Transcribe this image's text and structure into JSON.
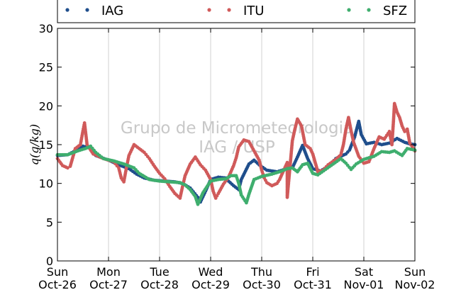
{
  "chart_data": {
    "type": "scatter",
    "title": "",
    "xlabel": "",
    "ylabel": "q(g/kg)",
    "ylim": [
      0,
      30
    ],
    "xlim": [
      0,
      7
    ],
    "yticks": [
      0,
      5,
      10,
      15,
      20,
      25,
      30
    ],
    "xticks": [
      {
        "day": "Sun",
        "date": "Oct-26"
      },
      {
        "day": "Mon",
        "date": "Oct-27"
      },
      {
        "day": "Tue",
        "date": "Oct-28"
      },
      {
        "day": "Wed",
        "date": "Oct-29"
      },
      {
        "day": "Thu",
        "date": "Oct-30"
      },
      {
        "day": "Fri",
        "date": "Oct-31"
      },
      {
        "day": "Sat",
        "date": "Nov-01"
      },
      {
        "day": "Sun",
        "date": "Nov-02"
      }
    ],
    "x_units": "days since Sun Oct-26 00:00",
    "grid": "vertical",
    "legend_position": "top",
    "watermark": [
      "Grupo de Micrometeorologia",
      "IAG / USP"
    ],
    "series": [
      {
        "name": "IAG",
        "color": "#1f4e8c",
        "points": [
          [
            0,
            13.6
          ],
          [
            0.2,
            13.7
          ],
          [
            0.35,
            14.2
          ],
          [
            0.5,
            14.8
          ],
          [
            0.62,
            14.6
          ],
          [
            0.75,
            13.6
          ],
          [
            1.0,
            13.0
          ],
          [
            1.2,
            12.4
          ],
          [
            1.4,
            11.9
          ],
          [
            1.55,
            11.2
          ],
          [
            1.7,
            10.7
          ],
          [
            1.9,
            10.4
          ],
          [
            2.1,
            10.3
          ],
          [
            2.3,
            10.2
          ],
          [
            2.45,
            10.0
          ],
          [
            2.6,
            9.4
          ],
          [
            2.75,
            8.2
          ],
          [
            2.8,
            7.6
          ],
          [
            2.9,
            9.0
          ],
          [
            3.0,
            10.5
          ],
          [
            3.15,
            10.8
          ],
          [
            3.3,
            10.7
          ],
          [
            3.35,
            10.3
          ],
          [
            3.45,
            9.7
          ],
          [
            3.55,
            9.2
          ],
          [
            3.6,
            10.5
          ],
          [
            3.75,
            12.5
          ],
          [
            3.85,
            13.0
          ],
          [
            3.95,
            12.4
          ],
          [
            4.1,
            11.7
          ],
          [
            4.3,
            11.5
          ],
          [
            4.45,
            11.8
          ],
          [
            4.6,
            12.0
          ],
          [
            4.7,
            13.4
          ],
          [
            4.8,
            14.9
          ],
          [
            4.9,
            13.2
          ],
          [
            5.0,
            11.9
          ],
          [
            5.15,
            11.6
          ],
          [
            5.3,
            12.2
          ],
          [
            5.45,
            13.2
          ],
          [
            5.55,
            13.5
          ],
          [
            5.65,
            13.8
          ],
          [
            5.72,
            14.3
          ],
          [
            5.82,
            16.0
          ],
          [
            5.9,
            18.0
          ],
          [
            5.95,
            16.3
          ],
          [
            6.05,
            15.1
          ],
          [
            6.2,
            15.3
          ],
          [
            6.35,
            15.0
          ],
          [
            6.5,
            15.2
          ],
          [
            6.65,
            15.8
          ],
          [
            6.8,
            15.3
          ],
          [
            6.9,
            15.1
          ],
          [
            7.0,
            15.0
          ]
        ]
      },
      {
        "name": "ITU",
        "color": "#d05a5a",
        "points": [
          [
            0,
            13.2
          ],
          [
            0.1,
            12.3
          ],
          [
            0.2,
            12.0
          ],
          [
            0.25,
            12.2
          ],
          [
            0.35,
            14.5
          ],
          [
            0.45,
            15.0
          ],
          [
            0.5,
            16.8
          ],
          [
            0.53,
            17.8
          ],
          [
            0.58,
            15.0
          ],
          [
            0.7,
            13.8
          ],
          [
            0.9,
            13.2
          ],
          [
            1.1,
            12.8
          ],
          [
            1.2,
            12.0
          ],
          [
            1.25,
            10.7
          ],
          [
            1.3,
            10.2
          ],
          [
            1.35,
            12.0
          ],
          [
            1.4,
            13.6
          ],
          [
            1.5,
            15.0
          ],
          [
            1.6,
            14.5
          ],
          [
            1.7,
            14.0
          ],
          [
            1.8,
            13.2
          ],
          [
            1.9,
            12.2
          ],
          [
            2.0,
            11.3
          ],
          [
            2.1,
            10.6
          ],
          [
            2.2,
            9.6
          ],
          [
            2.3,
            8.7
          ],
          [
            2.4,
            8.1
          ],
          [
            2.45,
            9.6
          ],
          [
            2.5,
            11.0
          ],
          [
            2.6,
            12.5
          ],
          [
            2.7,
            13.4
          ],
          [
            2.8,
            12.4
          ],
          [
            2.9,
            11.7
          ],
          [
            3.0,
            10.5
          ],
          [
            3.05,
            9.0
          ],
          [
            3.1,
            8.1
          ],
          [
            3.15,
            8.7
          ],
          [
            3.25,
            9.9
          ],
          [
            3.35,
            10.8
          ],
          [
            3.45,
            12.3
          ],
          [
            3.5,
            13.3
          ],
          [
            3.55,
            14.7
          ],
          [
            3.65,
            15.6
          ],
          [
            3.75,
            15.4
          ],
          [
            3.85,
            14.2
          ],
          [
            3.95,
            13.0
          ],
          [
            4.0,
            11.7
          ],
          [
            4.05,
            10.7
          ],
          [
            4.1,
            10.1
          ],
          [
            4.2,
            9.7
          ],
          [
            4.3,
            10.0
          ],
          [
            4.35,
            10.5
          ],
          [
            4.5,
            12.7
          ],
          [
            4.6,
            15.5
          ],
          [
            4.65,
            17.0
          ],
          [
            4.7,
            18.3
          ],
          [
            4.78,
            17.4
          ],
          [
            4.85,
            15.0
          ],
          [
            4.95,
            14.5
          ],
          [
            5.0,
            13.8
          ],
          [
            5.1,
            11.5
          ],
          [
            5.2,
            11.7
          ],
          [
            5.3,
            12.4
          ],
          [
            5.45,
            13.1
          ],
          [
            5.55,
            13.7
          ],
          [
            5.6,
            15.0
          ],
          [
            5.65,
            17.0
          ],
          [
            5.7,
            18.5
          ],
          [
            5.75,
            16.8
          ],
          [
            5.8,
            15.3
          ],
          [
            5.9,
            13.5
          ],
          [
            6.0,
            12.6
          ],
          [
            6.1,
            12.8
          ],
          [
            6.2,
            14.5
          ],
          [
            6.3,
            16.0
          ],
          [
            6.4,
            15.7
          ],
          [
            6.5,
            16.7
          ],
          [
            6.55,
            15.0
          ],
          [
            6.58,
            18.0
          ],
          [
            6.6,
            20.3
          ],
          [
            6.65,
            19.2
          ],
          [
            6.7,
            18.5
          ],
          [
            6.75,
            17.4
          ],
          [
            6.8,
            16.7
          ],
          [
            6.85,
            17.0
          ],
          [
            6.9,
            15.2
          ],
          [
            7.0,
            14.2
          ],
          [
            4.5,
            8.2
          ]
        ]
      },
      {
        "name": "SFZ",
        "color": "#3fae6e",
        "points": [
          [
            0,
            13.7
          ],
          [
            0.2,
            13.7
          ],
          [
            0.4,
            14.2
          ],
          [
            0.55,
            14.5
          ],
          [
            0.65,
            14.8
          ],
          [
            0.75,
            14.0
          ],
          [
            0.9,
            13.2
          ],
          [
            1.1,
            12.9
          ],
          [
            1.3,
            12.5
          ],
          [
            1.5,
            12.0
          ],
          [
            1.6,
            11.3
          ],
          [
            1.7,
            10.9
          ],
          [
            1.8,
            10.5
          ],
          [
            2.0,
            10.3
          ],
          [
            2.2,
            10.2
          ],
          [
            2.4,
            10.1
          ],
          [
            2.5,
            9.8
          ],
          [
            2.6,
            9.2
          ],
          [
            2.7,
            8.3
          ],
          [
            2.75,
            7.3
          ],
          [
            2.85,
            8.8
          ],
          [
            3.0,
            10.3
          ],
          [
            3.15,
            10.5
          ],
          [
            3.3,
            10.6
          ],
          [
            3.4,
            11.0
          ],
          [
            3.5,
            11.0
          ],
          [
            3.55,
            10.0
          ],
          [
            3.6,
            8.5
          ],
          [
            3.7,
            7.5
          ],
          [
            3.75,
            8.6
          ],
          [
            3.85,
            10.5
          ],
          [
            4.0,
            10.9
          ],
          [
            4.2,
            11.2
          ],
          [
            4.35,
            11.5
          ],
          [
            4.5,
            11.9
          ],
          [
            4.6,
            12.0
          ],
          [
            4.7,
            11.5
          ],
          [
            4.8,
            12.4
          ],
          [
            4.9,
            12.6
          ],
          [
            5.0,
            11.3
          ],
          [
            5.1,
            11.1
          ],
          [
            5.25,
            11.8
          ],
          [
            5.4,
            12.5
          ],
          [
            5.55,
            13.2
          ],
          [
            5.65,
            12.6
          ],
          [
            5.75,
            11.8
          ],
          [
            5.85,
            12.5
          ],
          [
            6.0,
            13.1
          ],
          [
            6.2,
            13.5
          ],
          [
            6.35,
            14.1
          ],
          [
            6.5,
            14.0
          ],
          [
            6.6,
            14.2
          ],
          [
            6.75,
            13.6
          ],
          [
            6.85,
            14.5
          ],
          [
            7.0,
            14.3
          ]
        ]
      }
    ]
  }
}
